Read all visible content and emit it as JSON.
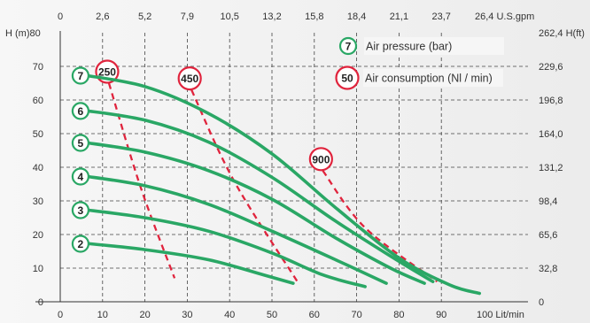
{
  "chart_data": {
    "type": "line",
    "x_bottom": {
      "label": "Lit/min",
      "min": 0,
      "max": 100,
      "ticks": [
        0,
        10,
        20,
        30,
        40,
        50,
        60,
        70,
        80,
        90,
        100
      ]
    },
    "x_top": {
      "label": "U.S.gpm",
      "ticks": [
        "0",
        "2,6",
        "5,2",
        "7,9",
        "10,5",
        "13,2",
        "15,8",
        "18,4",
        "21,1",
        "23,7",
        "26,4"
      ]
    },
    "y_left": {
      "label": "H (m)",
      "min": 0,
      "max": 80,
      "ticks": [
        0,
        10,
        20,
        30,
        40,
        50,
        60,
        70,
        80
      ]
    },
    "y_right": {
      "label": "H(ft)",
      "ticks": [
        "0",
        "32,8",
        "65,6",
        "98,4",
        "131,2",
        "164,0",
        "196,8",
        "229,6",
        "262,4"
      ]
    },
    "grid": "dashed",
    "colors": {
      "pressure_curve": "#2aa765",
      "consumption_line": "#e0243d"
    },
    "pressure_curves": [
      {
        "label": "2",
        "points": [
          [
            5,
            17.5
          ],
          [
            20,
            15.5
          ],
          [
            35,
            12.5
          ],
          [
            48,
            8
          ],
          [
            55,
            5.5
          ]
        ]
      },
      {
        "label": "3",
        "points": [
          [
            5,
            27.5
          ],
          [
            20,
            25
          ],
          [
            35,
            21
          ],
          [
            50,
            14.5
          ],
          [
            62,
            8
          ],
          [
            72,
            4.5
          ]
        ]
      },
      {
        "label": "4",
        "points": [
          [
            5,
            37.5
          ],
          [
            20,
            34.5
          ],
          [
            35,
            29
          ],
          [
            50,
            21
          ],
          [
            65,
            12.5
          ],
          [
            77,
            5.5
          ]
        ]
      },
      {
        "label": "5",
        "points": [
          [
            5,
            47.5
          ],
          [
            20,
            44.5
          ],
          [
            35,
            39
          ],
          [
            50,
            30.5
          ],
          [
            65,
            19
          ],
          [
            78,
            10
          ],
          [
            86,
            5.5
          ]
        ]
      },
      {
        "label": "6",
        "points": [
          [
            5,
            57
          ],
          [
            20,
            54
          ],
          [
            35,
            47.5
          ],
          [
            50,
            37
          ],
          [
            65,
            24
          ],
          [
            80,
            12
          ],
          [
            88,
            6
          ]
        ]
      },
      {
        "label": "7",
        "points": [
          [
            5,
            67.5
          ],
          [
            20,
            64
          ],
          [
            35,
            56
          ],
          [
            50,
            44
          ],
          [
            65,
            28
          ],
          [
            80,
            13
          ],
          [
            92,
            5
          ],
          [
            99,
            2.5
          ]
        ]
      }
    ],
    "consumption_lines": [
      {
        "label": "250",
        "points": [
          [
            11.5,
            65
          ],
          [
            19,
            34
          ],
          [
            27,
            7
          ]
        ]
      },
      {
        "label": "450",
        "points": [
          [
            31,
            63
          ],
          [
            41,
            36
          ],
          [
            56,
            6
          ]
        ]
      },
      {
        "label": "900",
        "points": [
          [
            62,
            39
          ],
          [
            72,
            22
          ],
          [
            89,
            6
          ]
        ]
      }
    ],
    "legend": [
      {
        "symbol": "7",
        "text": "Air pressure (bar)",
        "kind": "pressure"
      },
      {
        "symbol": "50",
        "text": "Air consumption (Nl / min)",
        "kind": "consumption"
      }
    ]
  }
}
